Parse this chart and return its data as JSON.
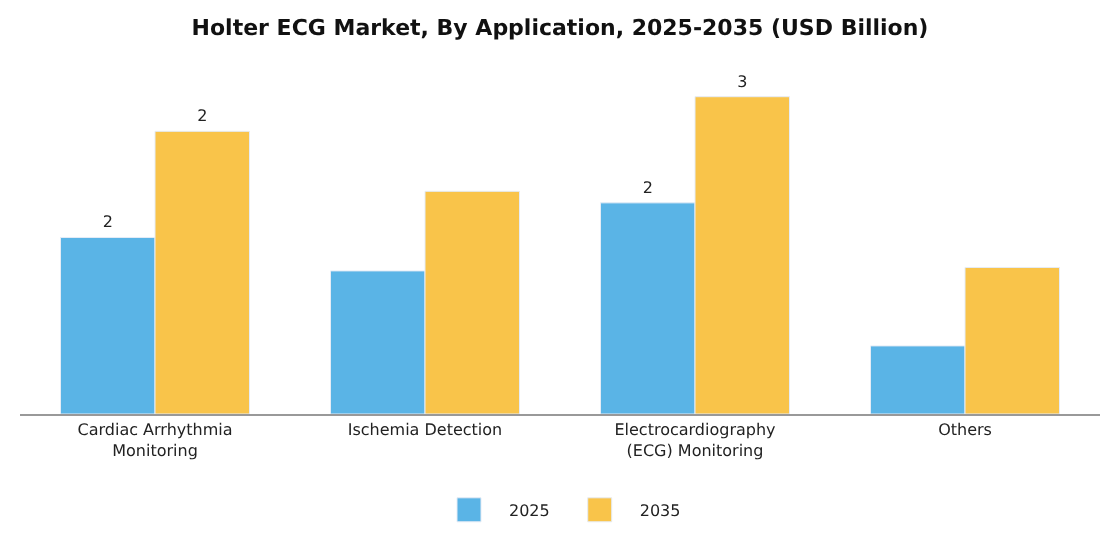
{
  "chart_data": {
    "type": "bar",
    "title": "Holter ECG Market, By Application, 2025-2035 (USD Billion)",
    "categories": [
      "Cardiac Arrhythmia Monitoring",
      "Ischemia Detection",
      "Electrocardiography (ECG) Monitoring",
      "Others"
    ],
    "series": [
      {
        "name": "2025",
        "color": "#5ab4e6",
        "values": [
          1.53,
          1.24,
          1.83,
          0.59
        ],
        "value_labels": [
          "2",
          null,
          "2",
          null
        ]
      },
      {
        "name": "2035",
        "color": "#f9c44a",
        "values": [
          2.45,
          1.93,
          2.75,
          1.27
        ],
        "value_labels": [
          "2",
          null,
          "3",
          null
        ]
      }
    ],
    "legend": "bottom",
    "tick_labels": "x"
  }
}
